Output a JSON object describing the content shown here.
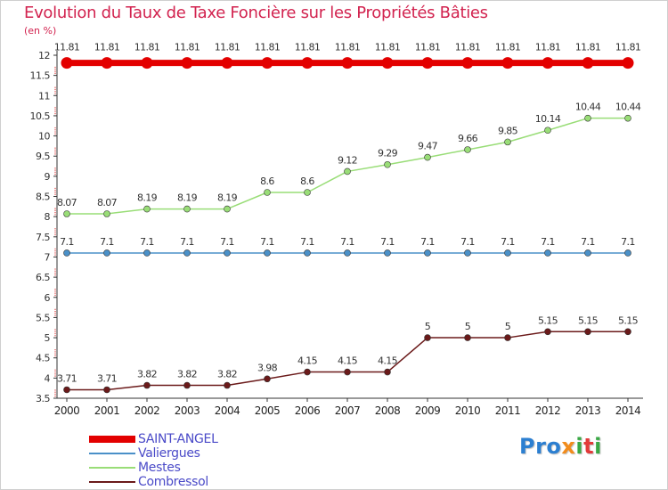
{
  "title": "Evolution du Taux de Taxe Foncière sur les Propriétés Bâties",
  "unit": "(en %)",
  "logo": {
    "text": "Proxiti",
    "colors": [
      "#2c7fd1",
      "#f28c1c",
      "#3aa845",
      "#e23a3a"
    ]
  },
  "chart_data": {
    "type": "line",
    "title": "Evolution du Taux de Taxe Foncière sur les Propriétés Bâties",
    "ylabel": "(en %)",
    "xlabel": "",
    "ylim": [
      3.5,
      12
    ],
    "y_ticks": [
      3.5,
      4,
      4.5,
      5,
      5.5,
      6,
      6.5,
      7,
      7.5,
      8,
      8.5,
      9,
      9.5,
      10,
      10.5,
      11,
      11.5,
      12
    ],
    "categories": [
      "2000",
      "2001",
      "2002",
      "2003",
      "2004",
      "2005",
      "2006",
      "2007",
      "2008",
      "2009",
      "2010",
      "2011",
      "2012",
      "2013",
      "2014"
    ],
    "grid": false,
    "legend_position": "bottom-left",
    "series": [
      {
        "name": "SAINT-ANGEL",
        "color": "#e30000",
        "bold": true,
        "values": [
          11.81,
          11.81,
          11.81,
          11.81,
          11.81,
          11.81,
          11.81,
          11.81,
          11.81,
          11.81,
          11.81,
          11.81,
          11.81,
          11.81,
          11.81
        ]
      },
      {
        "name": "Valiergues",
        "color": "#4a90c8",
        "bold": false,
        "values": [
          7.1,
          7.1,
          7.1,
          7.1,
          7.1,
          7.1,
          7.1,
          7.1,
          7.1,
          7.1,
          7.1,
          7.1,
          7.1,
          7.1,
          7.1
        ]
      },
      {
        "name": "Mestes",
        "color": "#99dd77",
        "bold": false,
        "values": [
          8.07,
          8.07,
          8.19,
          8.19,
          8.19,
          8.6,
          8.6,
          9.12,
          9.29,
          9.47,
          9.66,
          9.85,
          10.14,
          10.44,
          10.44
        ]
      },
      {
        "name": "Combressol",
        "color": "#6b1a1a",
        "bold": false,
        "values": [
          3.71,
          3.71,
          3.82,
          3.82,
          3.82,
          3.98,
          4.15,
          4.15,
          4.15,
          5,
          5,
          5,
          5.15,
          5.15,
          5.15
        ]
      }
    ]
  }
}
